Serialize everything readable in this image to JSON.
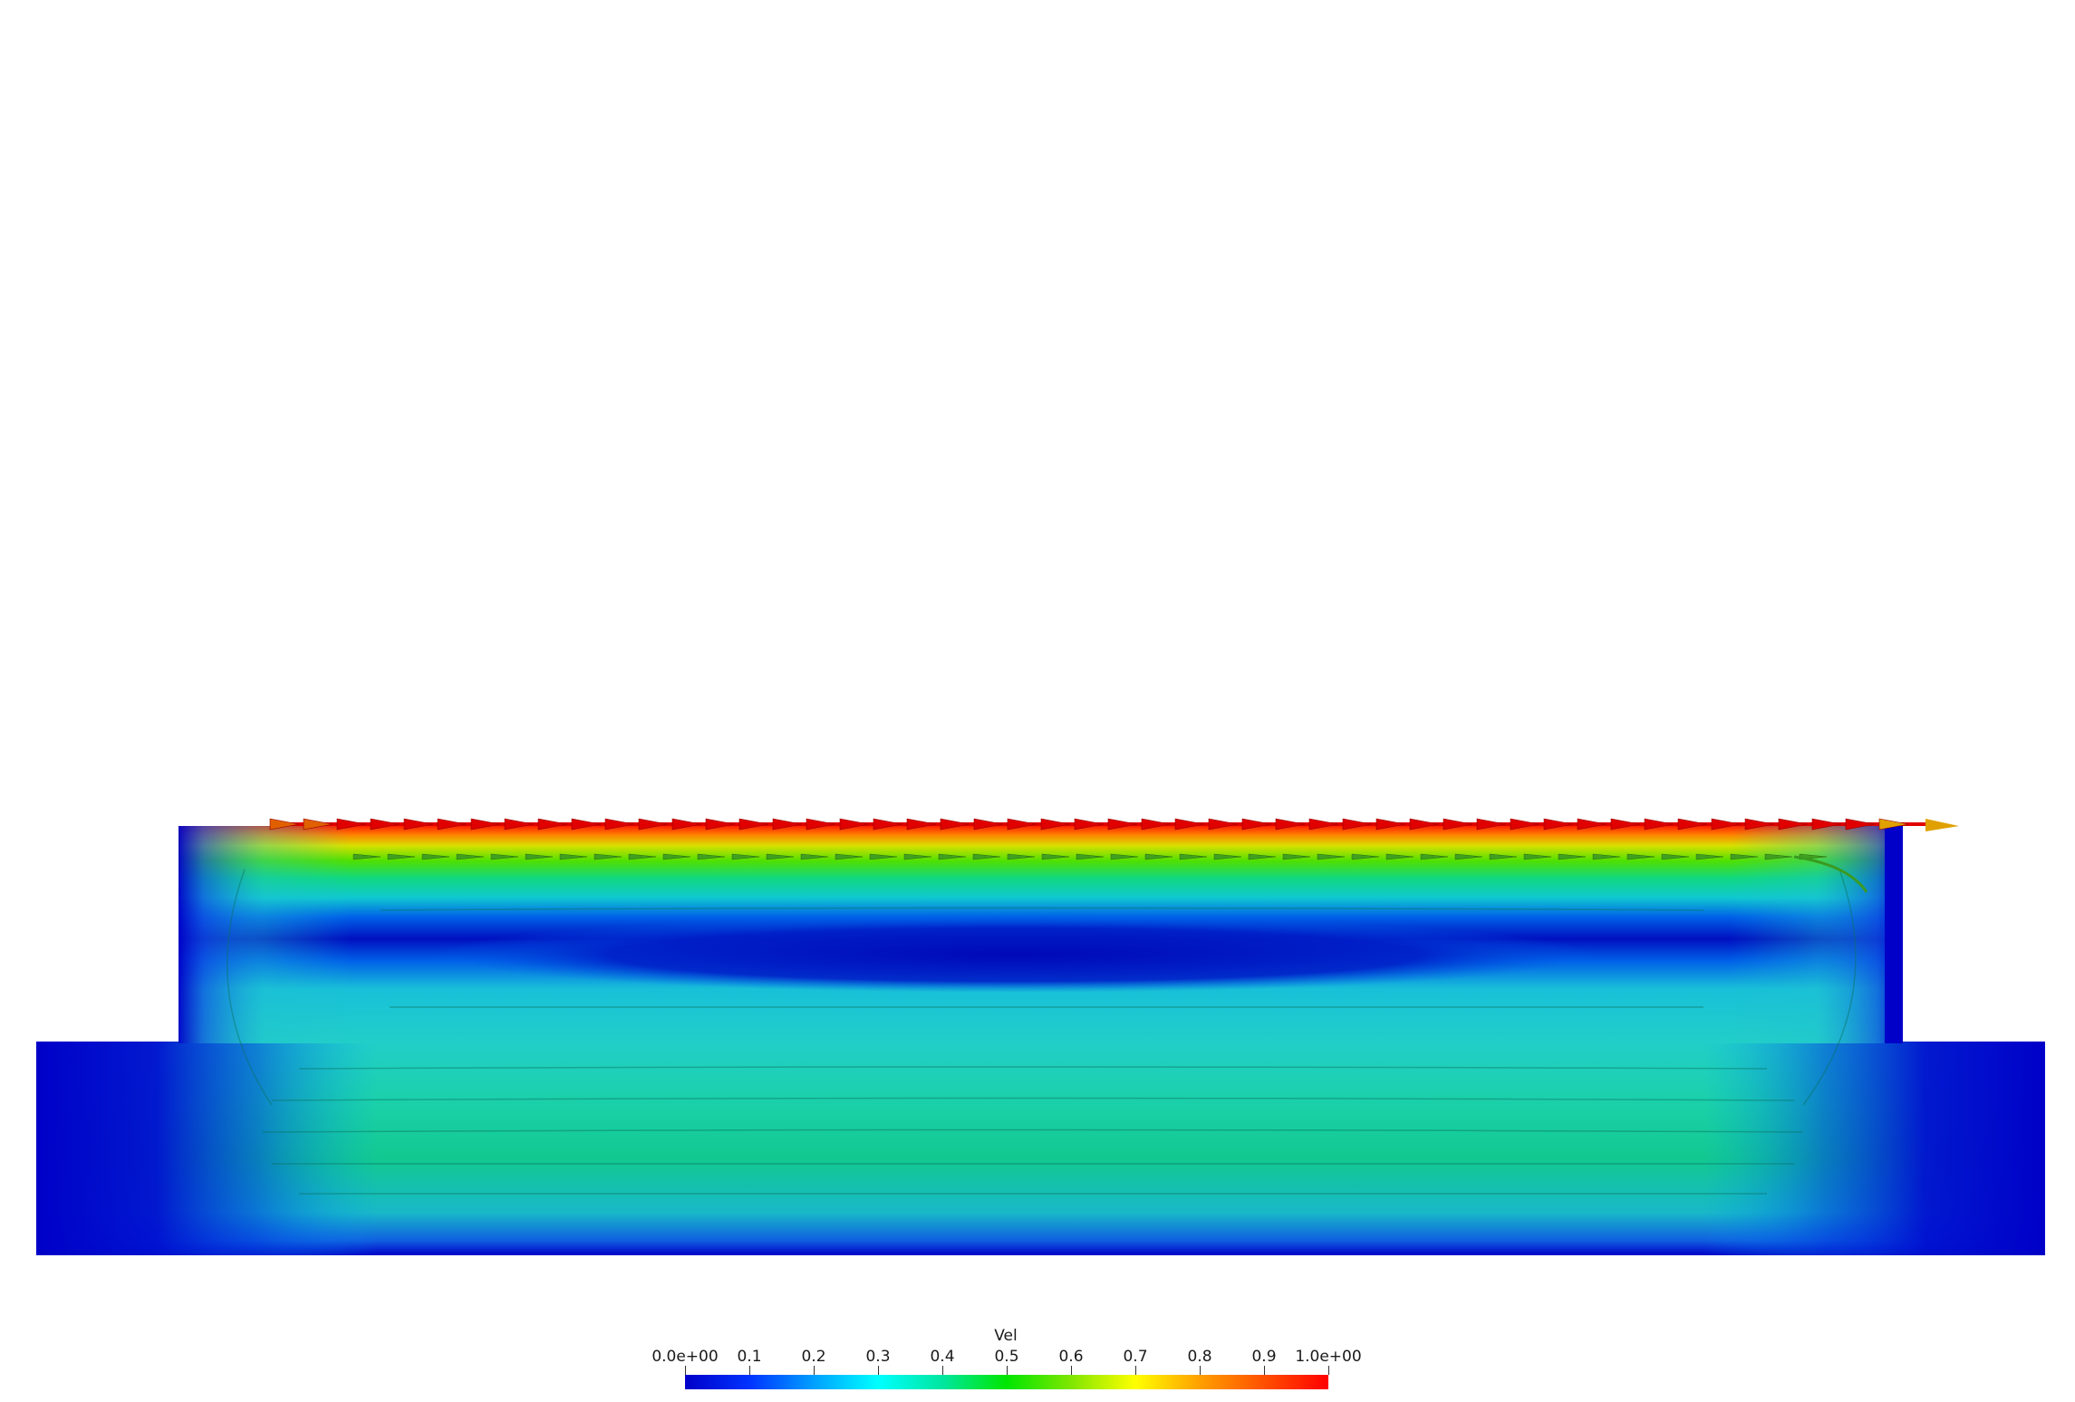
{
  "view": {
    "background": "#ffffff",
    "field_name": "Vel"
  },
  "colorbar": {
    "title": "Vel",
    "min_label": "0.0e+00",
    "max_label": "1.0e+00",
    "tick_labels": [
      "0.0e+00",
      "0.1",
      "0.2",
      "0.3",
      "0.4",
      "0.5",
      "0.6",
      "0.7",
      "0.8",
      "0.9",
      "1.0e+00"
    ],
    "tick_values": [
      0.0,
      0.1,
      0.2,
      0.3,
      0.4,
      0.5,
      0.6,
      0.7,
      0.8,
      0.9,
      1.0
    ],
    "colors": [
      "#0000c8",
      "#0033ff",
      "#00a0ff",
      "#00ffff",
      "#00e6a0",
      "#00e600",
      "#80e600",
      "#ffff00",
      "#ffa000",
      "#ff5000",
      "#ff0000"
    ]
  },
  "domain": {
    "lid_color": "#ff0000",
    "core_color": "#0000c8"
  }
}
